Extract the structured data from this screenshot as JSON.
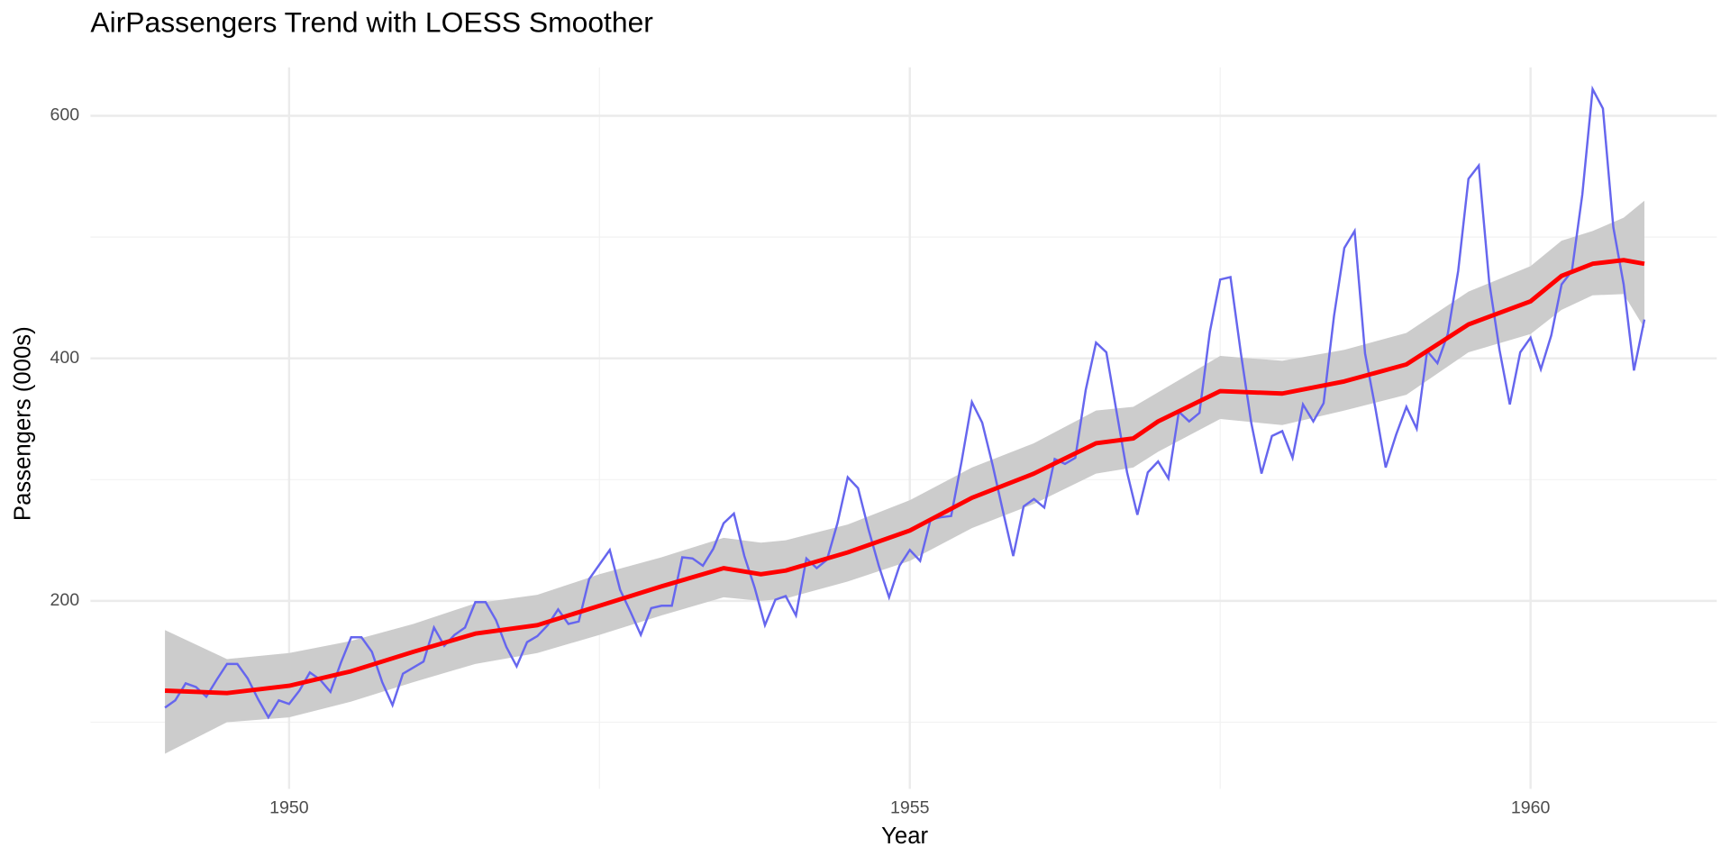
{
  "chart_data": {
    "type": "line",
    "title": "AirPassengers Trend with LOESS Smoother",
    "x_label": "Year",
    "y_label": "Passengers (000s)",
    "xlim": [
      1948.4,
      1961.5
    ],
    "ylim": [
      45,
      640
    ],
    "xticks": [
      1950,
      1955,
      1960
    ],
    "x_minor_ticks": [
      1952.5,
      1957.5
    ],
    "yticks": [
      200,
      400,
      600
    ],
    "y_minor_ticks": [
      100,
      300,
      500
    ],
    "grid": true,
    "color": "#6666ee",
    "x": [
      1949.0,
      1949.083,
      1949.167,
      1949.25,
      1949.333,
      1949.417,
      1949.5,
      1949.583,
      1949.667,
      1949.75,
      1949.833,
      1949.917,
      1950.0,
      1950.083,
      1950.167,
      1950.25,
      1950.333,
      1950.417,
      1950.5,
      1950.583,
      1950.667,
      1950.75,
      1950.833,
      1950.917,
      1951.0,
      1951.083,
      1951.167,
      1951.25,
      1951.333,
      1951.417,
      1951.5,
      1951.583,
      1951.667,
      1951.75,
      1951.833,
      1951.917,
      1952.0,
      1952.083,
      1952.167,
      1952.25,
      1952.333,
      1952.417,
      1952.5,
      1952.583,
      1952.667,
      1952.75,
      1952.833,
      1952.917,
      1953.0,
      1953.083,
      1953.167,
      1953.25,
      1953.333,
      1953.417,
      1953.5,
      1953.583,
      1953.667,
      1953.75,
      1953.833,
      1953.917,
      1954.0,
      1954.083,
      1954.167,
      1954.25,
      1954.333,
      1954.417,
      1954.5,
      1954.583,
      1954.667,
      1954.75,
      1954.833,
      1954.917,
      1955.0,
      1955.083,
      1955.167,
      1955.25,
      1955.333,
      1955.417,
      1955.5,
      1955.583,
      1955.667,
      1955.75,
      1955.833,
      1955.917,
      1956.0,
      1956.083,
      1956.167,
      1956.25,
      1956.333,
      1956.417,
      1956.5,
      1956.583,
      1956.667,
      1956.75,
      1956.833,
      1956.917,
      1957.0,
      1957.083,
      1957.167,
      1957.25,
      1957.333,
      1957.417,
      1957.5,
      1957.583,
      1957.667,
      1957.75,
      1957.833,
      1957.917,
      1958.0,
      1958.083,
      1958.167,
      1958.25,
      1958.333,
      1958.417,
      1958.5,
      1958.583,
      1958.667,
      1958.75,
      1958.833,
      1958.917,
      1959.0,
      1959.083,
      1959.167,
      1959.25,
      1959.333,
      1959.417,
      1959.5,
      1959.583,
      1959.667,
      1959.75,
      1959.833,
      1959.917,
      1960.0,
      1960.083,
      1960.167,
      1960.25,
      1960.333,
      1960.417,
      1960.5,
      1960.583,
      1960.667,
      1960.75,
      1960.833,
      1960.917
    ],
    "values": [
      112,
      118,
      132,
      129,
      121,
      135,
      148,
      148,
      136,
      119,
      104,
      118,
      115,
      126,
      141,
      135,
      125,
      149,
      170,
      170,
      158,
      133,
      114,
      140,
      145,
      150,
      178,
      163,
      172,
      178,
      199,
      199,
      184,
      162,
      146,
      166,
      171,
      180,
      193,
      181,
      183,
      218,
      230,
      242,
      209,
      191,
      172,
      194,
      196,
      196,
      236,
      235,
      229,
      243,
      264,
      272,
      237,
      211,
      180,
      201,
      204,
      188,
      235,
      227,
      234,
      264,
      302,
      293,
      259,
      229,
      203,
      229,
      242,
      233,
      267,
      269,
      270,
      315,
      364,
      347,
      312,
      274,
      237,
      278,
      284,
      277,
      317,
      313,
      318,
      374,
      413,
      405,
      355,
      306,
      271,
      306,
      315,
      301,
      356,
      348,
      355,
      422,
      465,
      467,
      404,
      347,
      305,
      336,
      340,
      318,
      362,
      348,
      363,
      435,
      491,
      505,
      404,
      359,
      310,
      337,
      360,
      342,
      406,
      396,
      420,
      472,
      548,
      559,
      463,
      407,
      362,
      405,
      417,
      391,
      419,
      461,
      472,
      535,
      622,
      606,
      508,
      461,
      390,
      432
    ],
    "smooth": {
      "color": "#ff0000",
      "band_color": "#cccccc",
      "x": [
        1949.0,
        1949.5,
        1950.0,
        1950.5,
        1951.0,
        1951.5,
        1952.0,
        1952.5,
        1953.0,
        1953.5,
        1953.8,
        1954.0,
        1954.5,
        1955.0,
        1955.5,
        1956.0,
        1956.5,
        1956.8,
        1957.0,
        1957.5,
        1958.0,
        1958.5,
        1959.0,
        1959.5,
        1960.0,
        1960.25,
        1960.5,
        1960.75,
        1960.917
      ],
      "values": [
        126,
        124,
        130,
        142,
        158,
        173,
        180,
        196,
        212,
        227,
        222,
        225,
        240,
        258,
        285,
        305,
        330,
        334,
        348,
        373,
        371,
        381,
        395,
        428,
        447,
        468,
        478,
        481,
        478
      ],
      "lower": [
        74,
        100,
        104,
        117,
        133,
        148,
        157,
        172,
        188,
        203,
        200,
        202,
        216,
        233,
        260,
        280,
        305,
        310,
        323,
        350,
        345,
        357,
        370,
        405,
        420,
        440,
        452,
        453,
        425
      ],
      "upper": [
        176,
        152,
        157,
        167,
        181,
        198,
        205,
        222,
        236,
        252,
        248,
        250,
        263,
        283,
        310,
        330,
        357,
        360,
        372,
        402,
        398,
        407,
        421,
        455,
        476,
        497,
        505,
        516,
        530
      ]
    }
  }
}
